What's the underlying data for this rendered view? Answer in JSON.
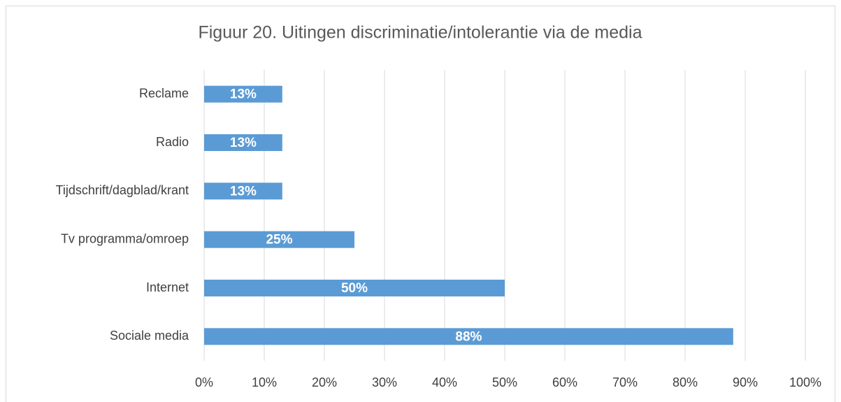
{
  "chart_data": {
    "type": "bar",
    "orientation": "horizontal",
    "title": "Figuur 20.  Uitingen discriminatie/intolerantie via de media",
    "categories": [
      "Reclame",
      "Radio",
      "Tijdschrift/dagblad/krant",
      "Tv programma/omroep",
      "Internet",
      "Sociale media"
    ],
    "values": [
      13,
      13,
      13,
      25,
      50,
      88
    ],
    "value_labels": [
      "13%",
      "13%",
      "13%",
      "25%",
      "50%",
      "88%"
    ],
    "color": "#5b9bd5",
    "xlim": [
      0,
      100
    ],
    "xticks": [
      {
        "value": 0,
        "label": "0%"
      },
      {
        "value": 10,
        "label": "10%"
      },
      {
        "value": 20,
        "label": "20%"
      },
      {
        "value": 30,
        "label": "30%"
      },
      {
        "value": 40,
        "label": "40%"
      },
      {
        "value": 50,
        "label": "50%"
      },
      {
        "value": 60,
        "label": "60%"
      },
      {
        "value": 70,
        "label": "70%"
      },
      {
        "value": 80,
        "label": "80%"
      },
      {
        "value": 90,
        "label": "90%"
      },
      {
        "value": 100,
        "label": "100%"
      }
    ],
    "grid": true
  }
}
